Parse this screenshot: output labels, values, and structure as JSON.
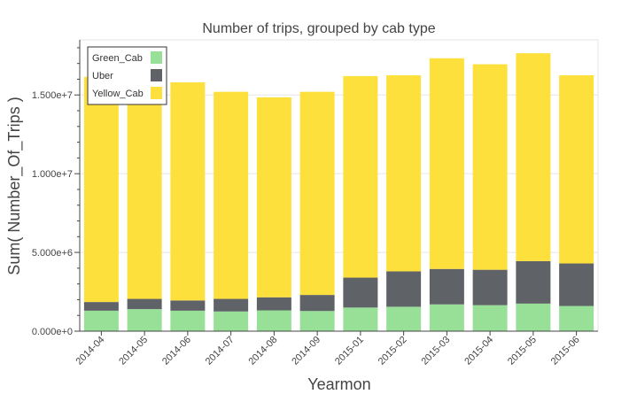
{
  "chart_data": {
    "type": "bar",
    "stacked": true,
    "title": "Number of trips, grouped by cab type",
    "xlabel": "Yearmon",
    "ylabel": "Sum( Number_Of_Trips )",
    "categories": [
      "2014-04",
      "2014-05",
      "2014-06",
      "2014-07",
      "2014-08",
      "2014-09",
      "2015-01",
      "2015-02",
      "2015-03",
      "2015-04",
      "2015-05",
      "2015-06"
    ],
    "series": [
      {
        "name": "Green_Cab",
        "color": "#98e098",
        "values": [
          1300000,
          1400000,
          1300000,
          1250000,
          1320000,
          1280000,
          1500000,
          1550000,
          1700000,
          1650000,
          1750000,
          1600000
        ]
      },
      {
        "name": "Uber",
        "color": "#5f6368",
        "values": [
          550000,
          650000,
          650000,
          800000,
          830000,
          1020000,
          1900000,
          2250000,
          2250000,
          2250000,
          2700000,
          2700000
        ]
      },
      {
        "name": "Yellow_Cab",
        "color": "#fde03c",
        "values": [
          14300000,
          13800000,
          13850000,
          13150000,
          12700000,
          12900000,
          12800000,
          12450000,
          13380000,
          13050000,
          13200000,
          11950000
        ]
      }
    ],
    "ylim": [
      0,
      18500000
    ],
    "yticks": [
      0,
      5000000,
      10000000,
      15000000
    ],
    "ytick_labels": [
      "0.000e+0",
      "5.000e+6",
      "1.000e+7",
      "1.500e+7"
    ],
    "grid": "horizontal",
    "legend_position": "top-left"
  }
}
